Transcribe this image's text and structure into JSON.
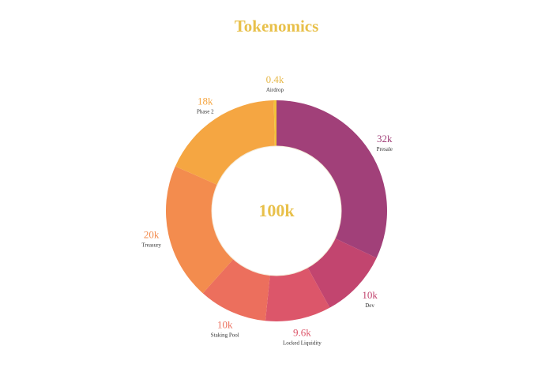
{
  "title": "Tokenomics",
  "title_color": "#e8c04a",
  "center_total": "100k",
  "center_color": "#e8c04a",
  "chart_data": {
    "type": "pie",
    "variant": "donut",
    "title": "Tokenomics",
    "total": 100000,
    "slices": [
      {
        "name": "Presale",
        "value": 32000,
        "label": "32k",
        "color": "#a14079",
        "label_color": "#a14079"
      },
      {
        "name": "Dev",
        "value": 10000,
        "label": "10k",
        "color": "#c2456f",
        "label_color": "#c2456f"
      },
      {
        "name": "Locked Liquidity",
        "value": 9600,
        "label": "9.6k",
        "color": "#dc566a",
        "label_color": "#dc566a"
      },
      {
        "name": "Staking Pool",
        "value": 10000,
        "label": "10k",
        "color": "#ec6f5d",
        "label_color": "#ec6f5d"
      },
      {
        "name": "Treasury",
        "value": 20000,
        "label": "20k",
        "color": "#f38c4e",
        "label_color": "#f38c4e"
      },
      {
        "name": "Phase 2",
        "value": 18000,
        "label": "18k",
        "color": "#f5a642",
        "label_color": "#f5a642"
      },
      {
        "name": "Airdrop",
        "value": 400,
        "label": "0.4k",
        "color": "#f2c13a",
        "label_color": "#e6b84a"
      }
    ]
  }
}
